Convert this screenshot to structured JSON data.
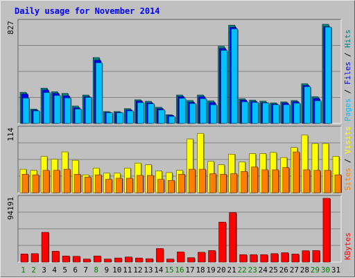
{
  "chart_data": {
    "type": "bar",
    "title": "Daily usage for November 2014",
    "days": [
      "1",
      "2",
      "3",
      "4",
      "5",
      "6",
      "7",
      "8",
      "9",
      "10",
      "11",
      "12",
      "13",
      "14",
      "15",
      "16",
      "17",
      "18",
      "19",
      "20",
      "21",
      "22",
      "23",
      "24",
      "25",
      "26",
      "27",
      "28",
      "29",
      "30",
      "31"
    ],
    "weekend_days": [
      "1",
      "2",
      "8",
      "15",
      "16",
      "22",
      "23",
      "29",
      "30"
    ],
    "panels": [
      {
        "name": "hits-files-pages",
        "ymax_label": "827",
        "ymax": 827,
        "series": [
          {
            "name": "Hits",
            "color": "#008080",
            "values": [
              254,
              117,
              288,
              259,
              245,
              142,
              232,
              538,
              97,
              97,
              121,
              193,
              181,
              132,
              71,
              232,
              187,
              232,
              184,
              630,
              803,
              201,
              190,
              182,
              168,
              176,
              187,
              324,
              218,
              810,
              null
            ]
          },
          {
            "name": "Files",
            "color": "#0000ff",
            "values": [
              240,
              108,
              273,
              245,
              225,
              127,
              218,
              516,
              90,
              90,
              110,
              183,
              168,
              120,
              65,
              218,
              172,
              218,
              170,
              612,
              785,
              190,
              178,
              170,
              158,
              166,
              177,
              310,
              204,
              790,
              null
            ]
          },
          {
            "name": "Pages",
            "color": "#00c0ff",
            "values": [
              207,
              102,
              252,
              228,
              208,
              117,
              212,
              495,
              87,
              87,
              102,
              170,
              160,
              110,
              57,
              205,
              162,
              202,
              152,
              597,
              772,
              176,
              171,
              167,
              153,
              153,
              165,
              300,
              185,
              787,
              null
            ]
          }
        ],
        "side_labels": [
          {
            "text": "Pages",
            "color": "#00c0ff"
          },
          {
            "text": " / ",
            "color": "#000000"
          },
          {
            "text": "Files",
            "color": "#0000ff"
          },
          {
            "text": " / ",
            "color": "#000000"
          },
          {
            "text": "Hits",
            "color": "#008080"
          }
        ]
      },
      {
        "name": "visits-sites",
        "ymax_label": "114",
        "ymax": 114,
        "series": [
          {
            "name": "Visits",
            "color": "#ffff00",
            "values": [
              42,
              40,
              65,
              60,
              73,
              58,
              32,
              44,
              35,
              35,
              44,
              53,
              50,
              39,
              36,
              40,
              96,
              106,
              56,
              50,
              69,
              55,
              70,
              70,
              72,
              63,
              81,
              103,
              88,
              88,
              65
            ]
          },
          {
            "name": "Sites",
            "color": "#ff8000",
            "values": [
              33,
              32,
              40,
              40,
              42,
              33,
              28,
              32,
              24,
              26,
              26,
              31,
              31,
              24,
              22,
              33,
              42,
              42,
              34,
              33,
              34,
              38,
              46,
              41,
              41,
              45,
              73,
              41,
              40,
              40,
              32
            ]
          }
        ],
        "side_labels": [
          {
            "text": "Sites",
            "color": "#ff8000"
          },
          {
            "text": " / ",
            "color": "#000000"
          },
          {
            "text": "Visits",
            "color": "#ffff00"
          }
        ]
      },
      {
        "name": "kbytes",
        "ymax_label": "94191",
        "ymax": 94191,
        "series": [
          {
            "name": "KBytes",
            "color": "#ff0000",
            "values": [
              12000,
              12500,
              44000,
              16000,
              9000,
              8500,
              4500,
              9000,
              4500,
              6000,
              7500,
              6000,
              5000,
              20000,
              4500,
              15000,
              6500,
              14500,
              17000,
              59000,
              73000,
              11000,
              11000,
              11000,
              12500,
              13800,
              11900,
              16800,
              17000,
              94191,
              null
            ]
          }
        ],
        "side_labels": [
          {
            "text": "KBytes",
            "color": "#ff0000"
          }
        ]
      }
    ]
  }
}
